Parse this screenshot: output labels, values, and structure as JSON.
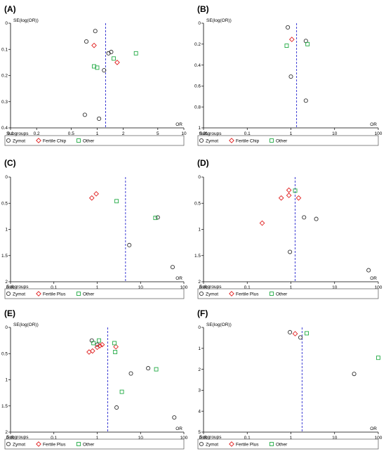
{
  "colors": {
    "zymot": "#333333",
    "fertile": "#e02020",
    "other": "#22aa44",
    "ref_line": "#2a2ad0",
    "axis": "#000000"
  },
  "chart_data": [
    {
      "type": "scatter",
      "panel": "(A)",
      "xlabel": "OR",
      "ylabel": "SE(log(OR))",
      "x_scale": "log",
      "xlim": [
        0.1,
        10
      ],
      "ylim": [
        0,
        0.4
      ],
      "y_inverted": true,
      "xticks": [
        "0.1",
        "0.2",
        "0.5",
        "1",
        "2",
        "5",
        "10"
      ],
      "yticks": [
        "0",
        "0.1",
        "0.2",
        "0.3",
        "0.4"
      ],
      "pooled_or": 1.25,
      "legend_title": "Subgroups",
      "series": [
        {
          "name": "Zymot",
          "marker": "circle",
          "points": [
            [
              0.95,
              0.03
            ],
            [
              0.75,
              0.07
            ],
            [
              1.35,
              0.115
            ],
            [
              1.45,
              0.11
            ],
            [
              1.2,
              0.18
            ],
            [
              0.72,
              0.35
            ],
            [
              1.05,
              0.365
            ]
          ]
        },
        {
          "name": "Fertile Chip",
          "marker": "diamond",
          "points": [
            [
              0.92,
              0.085
            ],
            [
              1.7,
              0.15
            ]
          ]
        },
        {
          "name": "Other",
          "marker": "square",
          "points": [
            [
              0.92,
              0.165
            ],
            [
              1.0,
              0.17
            ],
            [
              1.55,
              0.135
            ],
            [
              2.8,
              0.115
            ]
          ]
        }
      ]
    },
    {
      "type": "scatter",
      "panel": "(B)",
      "xlabel": "OR",
      "ylabel": "SE(log(OR))",
      "x_scale": "log",
      "xlim": [
        0.01,
        100
      ],
      "ylim": [
        0,
        1.0
      ],
      "y_inverted": true,
      "xticks": [
        "0.01",
        "0.1",
        "1",
        "10",
        "100"
      ],
      "yticks": [
        "0",
        "0.2",
        "0.4",
        "0.6",
        "0.8",
        "1"
      ],
      "pooled_or": 1.35,
      "legend_title": "Subgroups",
      "series": [
        {
          "name": "Zymot",
          "marker": "circle",
          "points": [
            [
              0.85,
              0.04
            ],
            [
              2.2,
              0.17
            ],
            [
              1.0,
              0.51
            ],
            [
              2.2,
              0.74
            ]
          ]
        },
        {
          "name": "Fertile Chip",
          "marker": "diamond",
          "points": [
            [
              1.05,
              0.155
            ]
          ]
        },
        {
          "name": "Other",
          "marker": "square",
          "points": [
            [
              0.8,
              0.215
            ],
            [
              2.4,
              0.2
            ]
          ]
        }
      ]
    },
    {
      "type": "scatter",
      "panel": "(C)",
      "xlabel": "OR",
      "ylabel": "",
      "x_scale": "log",
      "xlim": [
        0.01,
        100
      ],
      "ylim": [
        0,
        2
      ],
      "y_inverted": true,
      "xticks": [
        "0.01",
        "0.1",
        "1",
        "10",
        "100"
      ],
      "yticks": [
        "0",
        "0.5",
        "1",
        "1.5",
        "2"
      ],
      "pooled_or": 4.5,
      "legend_title": "Subgroups",
      "series": [
        {
          "name": "Zymot",
          "marker": "circle",
          "points": [
            [
              25,
              0.77
            ],
            [
              5.5,
              1.3
            ],
            [
              55,
              1.72
            ]
          ]
        },
        {
          "name": "Fertile Plus",
          "marker": "diamond",
          "points": [
            [
              0.75,
              0.4
            ],
            [
              0.95,
              0.32
            ]
          ]
        },
        {
          "name": "Other",
          "marker": "square",
          "points": [
            [
              2.8,
              0.46
            ],
            [
              22,
              0.78
            ]
          ]
        }
      ]
    },
    {
      "type": "scatter",
      "panel": "(D)",
      "xlabel": "OR",
      "ylabel": "",
      "x_scale": "log",
      "xlim": [
        0.01,
        100
      ],
      "ylim": [
        0,
        2
      ],
      "y_inverted": true,
      "xticks": [
        "0.01",
        "0.1",
        "1",
        "10",
        "100"
      ],
      "yticks": [
        "0",
        "0.5",
        "1",
        "1.5",
        "2"
      ],
      "pooled_or": 1.25,
      "legend_title": "Subgroups",
      "series": [
        {
          "name": "Zymot",
          "marker": "circle",
          "points": [
            [
              2.0,
              0.77
            ],
            [
              3.8,
              0.8
            ],
            [
              0.95,
              1.43
            ],
            [
              60,
              1.78
            ]
          ]
        },
        {
          "name": "Fertile Plus",
          "marker": "diamond",
          "points": [
            [
              0.9,
              0.25
            ],
            [
              0.9,
              0.35
            ],
            [
              0.6,
              0.4
            ],
            [
              1.5,
              0.4
            ],
            [
              0.22,
              0.88
            ]
          ]
        },
        {
          "name": "Other",
          "marker": "square",
          "points": [
            [
              1.25,
              0.26
            ]
          ]
        }
      ]
    },
    {
      "type": "scatter",
      "panel": "(E)",
      "xlabel": "OR",
      "ylabel": "SE(log(OR))",
      "x_scale": "log",
      "xlim": [
        0.01,
        100
      ],
      "ylim": [
        0,
        2
      ],
      "y_inverted": true,
      "xticks": [
        "0.01",
        "0.1",
        "1",
        "10",
        "100"
      ],
      "yticks": [
        "0",
        "0.5",
        "1",
        "1.5",
        "2"
      ],
      "pooled_or": 1.75,
      "legend_title": "Subgroups",
      "series": [
        {
          "name": "Zymot",
          "marker": "circle",
          "points": [
            [
              0.75,
              0.25
            ],
            [
              1.0,
              0.33
            ],
            [
              6.0,
              0.88
            ],
            [
              15,
              0.78
            ],
            [
              2.8,
              1.53
            ],
            [
              60,
              1.72
            ]
          ]
        },
        {
          "name": "Fertile Plus",
          "marker": "diamond",
          "points": [
            [
              0.65,
              0.47
            ],
            [
              0.78,
              0.45
            ],
            [
              1.0,
              0.38
            ],
            [
              1.15,
              0.35
            ],
            [
              2.7,
              0.37
            ],
            [
              1.3,
              0.33
            ]
          ]
        },
        {
          "name": "Other",
          "marker": "square",
          "points": [
            [
              0.82,
              0.3
            ],
            [
              1.1,
              0.25
            ],
            [
              2.5,
              0.3
            ],
            [
              2.6,
              0.47
            ],
            [
              23,
              0.8
            ],
            [
              3.7,
              1.23
            ]
          ]
        }
      ]
    },
    {
      "type": "scatter",
      "panel": "(F)",
      "xlabel": "OR",
      "ylabel": "SE(log(OR))",
      "x_scale": "log",
      "xlim": [
        0.01,
        100
      ],
      "ylim": [
        0,
        5
      ],
      "y_inverted": true,
      "xticks": [
        "0.01",
        "0.1",
        "1",
        "10",
        "100"
      ],
      "yticks": [
        "0",
        "1",
        "2",
        "3",
        "4",
        "5"
      ],
      "pooled_or": 1.8,
      "legend_title": "Subgroups",
      "series": [
        {
          "name": "Zymot",
          "marker": "circle",
          "points": [
            [
              0.95,
              0.23
            ],
            [
              1.65,
              0.48
            ],
            [
              28,
              2.22
            ]
          ]
        },
        {
          "name": "Fertile Plus",
          "marker": "diamond",
          "points": [
            [
              1.25,
              0.3
            ]
          ]
        },
        {
          "name": "Other",
          "marker": "square",
          "points": [
            [
              2.3,
              0.28
            ],
            [
              100,
              1.45
            ]
          ]
        }
      ]
    }
  ]
}
